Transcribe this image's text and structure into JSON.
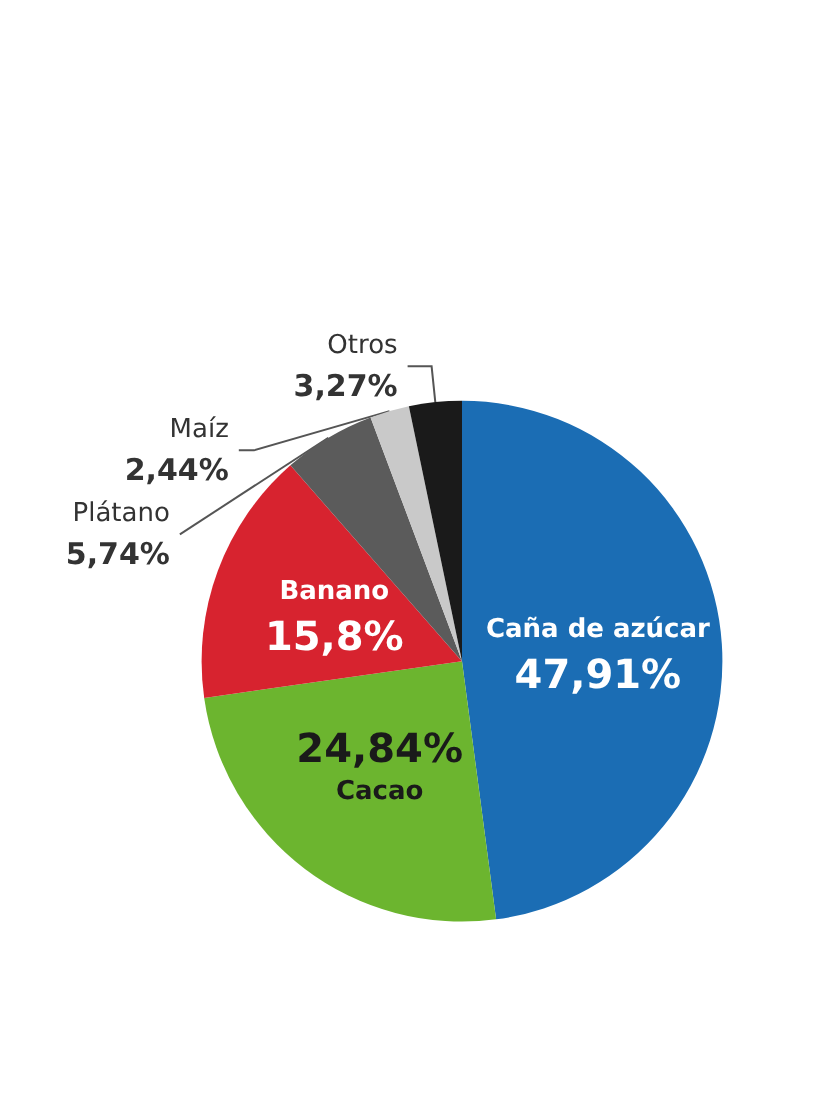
{
  "chart_data": {
    "type": "pie",
    "categories": [
      "Caña de azúcar",
      "Cacao",
      "Banano",
      "Plátano",
      "Maíz",
      "Otros"
    ],
    "values": [
      47.91,
      24.84,
      15.8,
      5.74,
      2.44,
      3.27
    ],
    "value_labels": [
      "47,91%",
      "24,84%",
      "15,8%",
      "5,74%",
      "2,44%",
      "3,27%"
    ],
    "colors": [
      "#1b6db4",
      "#6cb52f",
      "#d7232f",
      "#5b5b5b",
      "#c9c9c9",
      "#1a1a1a"
    ]
  }
}
